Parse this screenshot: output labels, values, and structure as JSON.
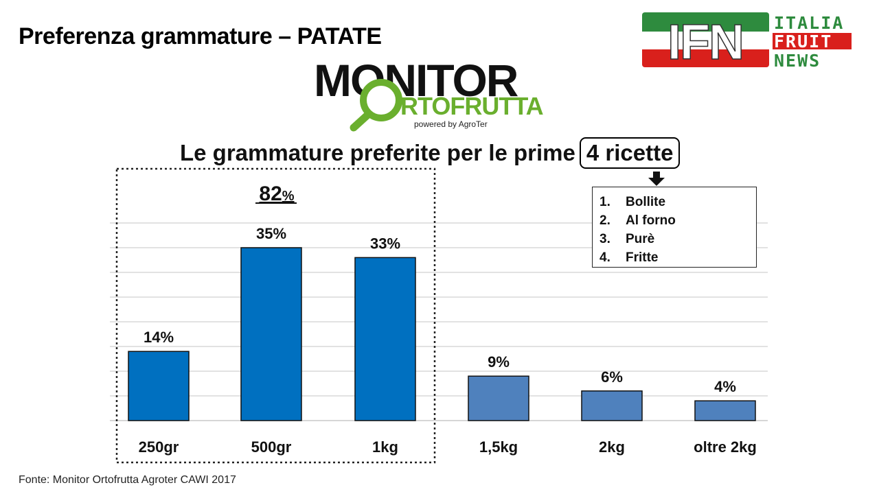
{
  "slide": {
    "title": "Preferenza grammature – PATATE",
    "source": "Fonte: Monitor Ortofrutta Agroter CAWI 2017"
  },
  "logos": {
    "ifn": {
      "mark": "IFN",
      "line1": "ITALIA",
      "line2": "FRUIT",
      "line3": "NEWS"
    },
    "monitor": {
      "word1": "MONITOR",
      "word2": "RTOFRUTTA",
      "tagline": "powered by AgroTer"
    }
  },
  "heading": {
    "text": "Le grammature preferite per le prime",
    "boxed": "4 ricette"
  },
  "recipes": [
    {
      "num": "1.",
      "label": "Bollite"
    },
    {
      "num": "2.",
      "label": "Al forno"
    },
    {
      "num": "3.",
      "label": "Purè"
    },
    {
      "num": "4.",
      "label": "Fritte"
    }
  ],
  "highlight": {
    "value": "82",
    "unit": "%"
  },
  "colors": {
    "bar_highlight": "#0070C0",
    "bar_other": "#4F81BD",
    "ifn_green": "#2E8B3E",
    "ifn_red": "#D9201C",
    "monitor_green": "#6AAF2E"
  },
  "chart_data": {
    "type": "bar",
    "categories": [
      "250gr",
      "500gr",
      "1kg",
      "1,5kg",
      "2kg",
      "oltre 2kg"
    ],
    "values": [
      14,
      35,
      33,
      9,
      6,
      4
    ],
    "value_labels": [
      "14%",
      "35%",
      "33%",
      "9%",
      "6%",
      "4%"
    ],
    "highlighted_categories": [
      "250gr",
      "500gr",
      "1kg"
    ],
    "ylim": [
      0,
      40
    ],
    "grid": true,
    "title": "",
    "xlabel": "",
    "ylabel": ""
  }
}
